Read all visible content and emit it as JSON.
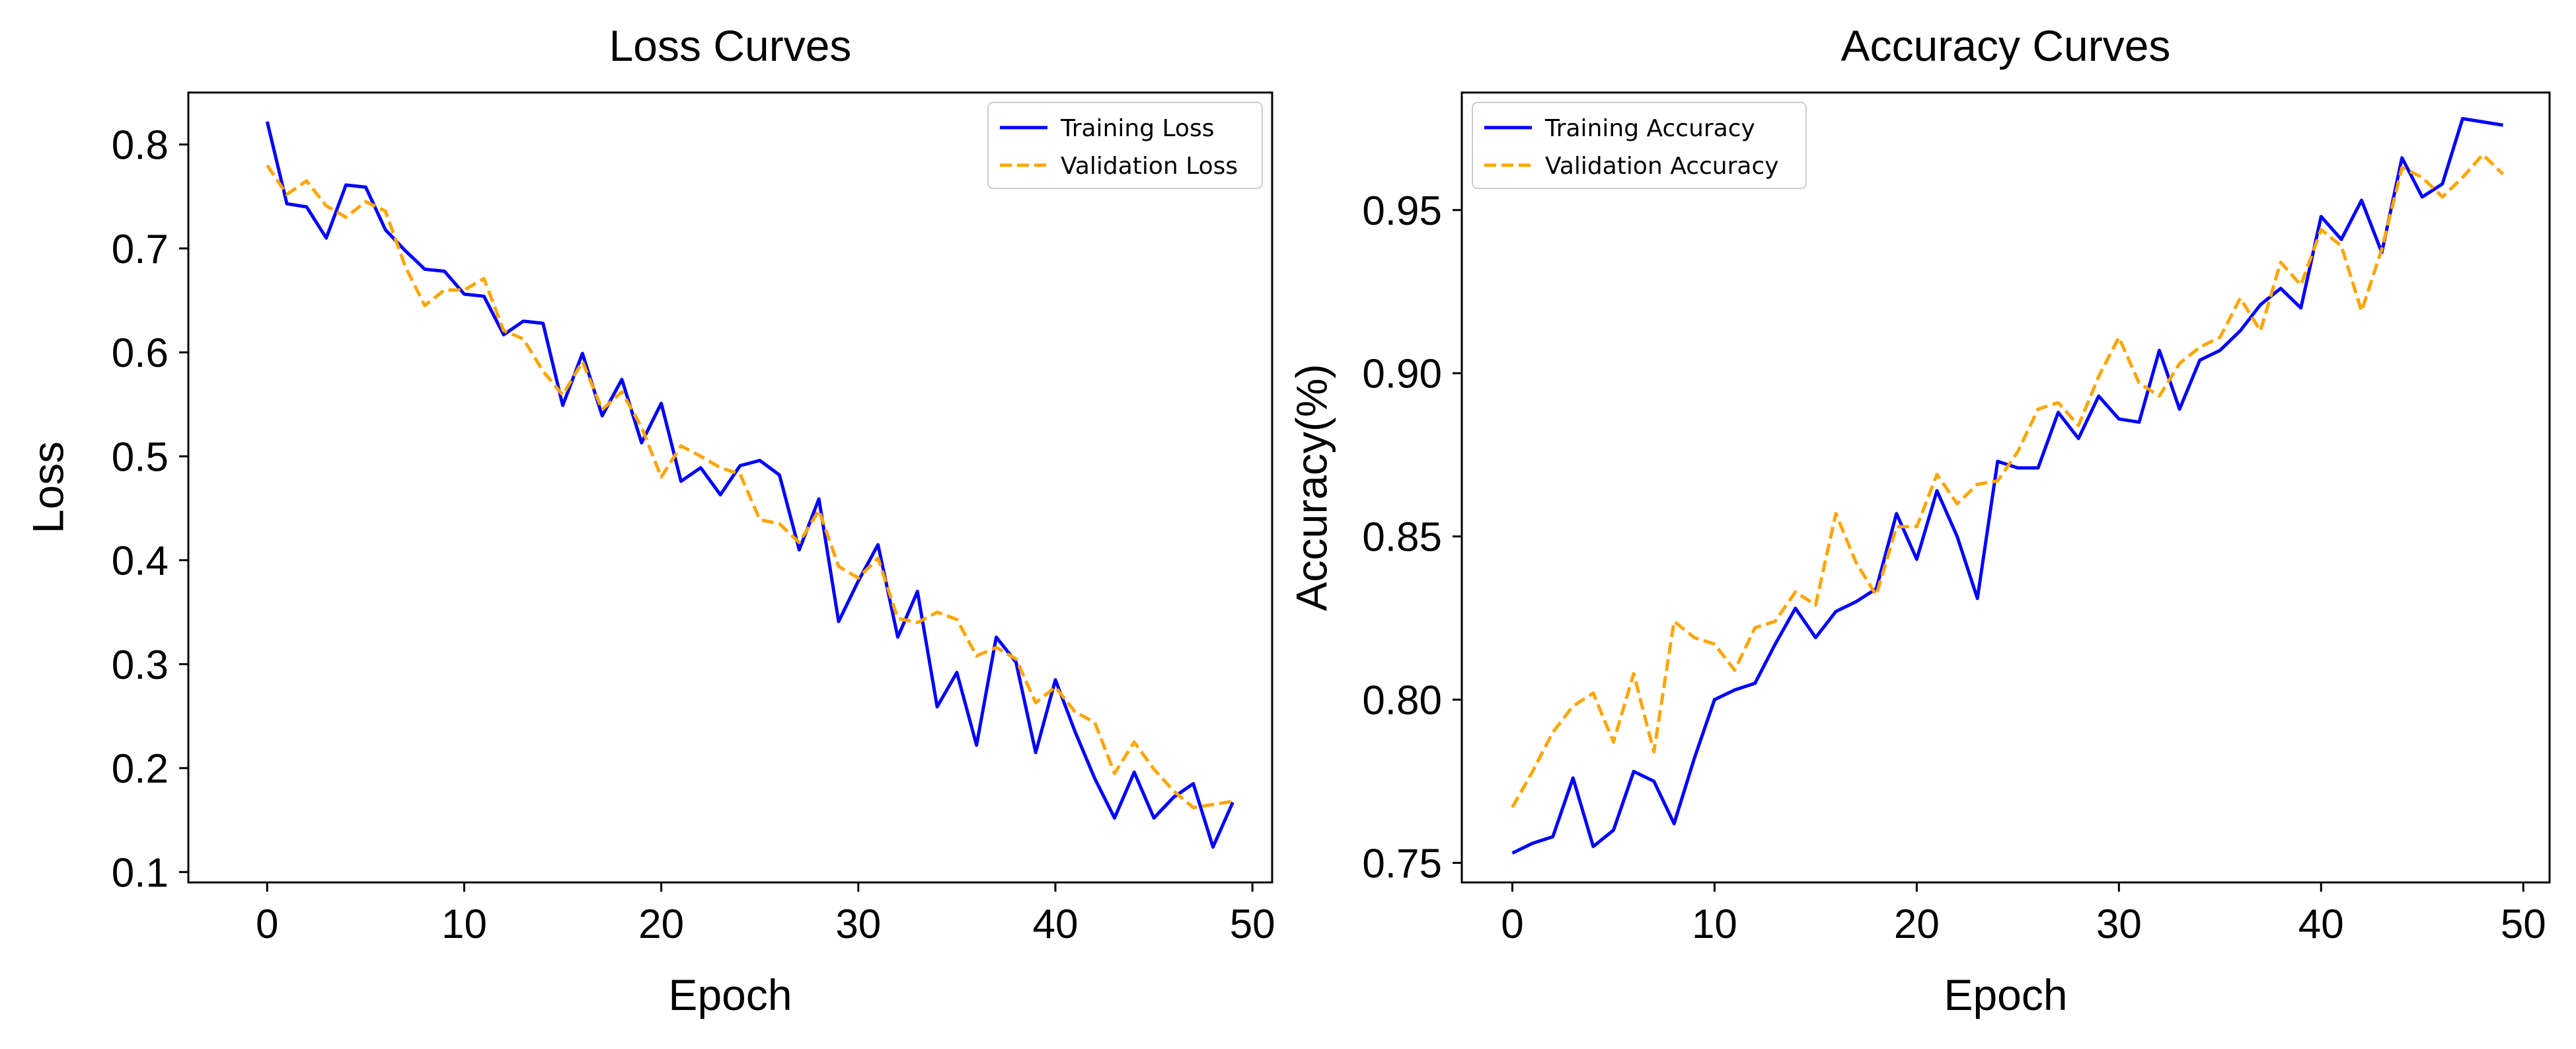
{
  "chart_data": [
    {
      "type": "line",
      "title": "Loss Curves",
      "xlabel": "Epoch",
      "ylabel": "Loss",
      "xlim": [
        -4,
        51
      ],
      "ylim": [
        0.09,
        0.85
      ],
      "xticks": [
        0,
        10,
        20,
        30,
        40,
        50
      ],
      "xtick_labels": [
        "0",
        "10",
        "20",
        "30",
        "40",
        "50"
      ],
      "yticks": [
        0.1,
        0.2,
        0.3,
        0.4,
        0.5,
        0.6,
        0.7,
        0.8
      ],
      "ytick_labels": [
        "0.1",
        "0.2",
        "0.3",
        "0.4",
        "0.5",
        "0.6",
        "0.7",
        "0.8"
      ],
      "grid": false,
      "legend": "top-right",
      "x": [
        0,
        1,
        2,
        3,
        4,
        5,
        6,
        7,
        8,
        9,
        10,
        11,
        12,
        13,
        14,
        15,
        16,
        17,
        18,
        19,
        20,
        21,
        22,
        23,
        24,
        25,
        26,
        27,
        28,
        29,
        30,
        31,
        32,
        33,
        34,
        35,
        36,
        37,
        38,
        39,
        40,
        41,
        42,
        43,
        44,
        45,
        46,
        47,
        48,
        49
      ],
      "series": [
        {
          "name": "Training Loss",
          "color": "#0000ff",
          "style": "solid",
          "values": [
            0.822,
            0.743,
            0.74,
            0.71,
            0.761,
            0.759,
            0.718,
            0.698,
            0.68,
            0.678,
            0.656,
            0.654,
            0.617,
            0.63,
            0.628,
            0.549,
            0.599,
            0.539,
            0.574,
            0.513,
            0.551,
            0.476,
            0.489,
            0.463,
            0.491,
            0.496,
            0.482,
            0.41,
            0.459,
            0.341,
            0.38,
            0.415,
            0.326,
            0.37,
            0.259,
            0.292,
            0.222,
            0.326,
            0.302,
            0.215,
            0.285,
            0.235,
            0.19,
            0.152,
            0.196,
            0.152,
            0.172,
            0.185,
            0.124,
            0.167
          ]
        },
        {
          "name": "Validation Loss",
          "color": "#ffa500",
          "style": "dashed",
          "values": [
            0.78,
            0.752,
            0.765,
            0.741,
            0.73,
            0.745,
            0.736,
            0.683,
            0.645,
            0.66,
            0.66,
            0.671,
            0.621,
            0.613,
            0.582,
            0.559,
            0.591,
            0.545,
            0.562,
            0.528,
            0.48,
            0.51,
            0.5,
            0.489,
            0.483,
            0.439,
            0.435,
            0.417,
            0.448,
            0.394,
            0.383,
            0.402,
            0.344,
            0.34,
            0.35,
            0.343,
            0.308,
            0.316,
            0.305,
            0.263,
            0.278,
            0.254,
            0.244,
            0.195,
            0.225,
            0.199,
            0.178,
            0.162,
            0.165,
            0.168
          ]
        }
      ]
    },
    {
      "type": "line",
      "title": "Accuracy Curves",
      "xlabel": "Epoch",
      "ylabel": "Accuracy(%)",
      "xlim": [
        -2.5,
        51.3
      ],
      "ylim": [
        0.744,
        0.986
      ],
      "xticks": [
        0,
        10,
        20,
        30,
        40,
        50
      ],
      "xtick_labels": [
        "0",
        "10",
        "20",
        "30",
        "40",
        "50"
      ],
      "yticks": [
        0.75,
        0.8,
        0.85,
        0.9,
        0.95
      ],
      "ytick_labels": [
        "0.75",
        "0.80",
        "0.85",
        "0.90",
        "0.95"
      ],
      "grid": false,
      "legend": "top-left",
      "x": [
        0,
        1,
        2,
        3,
        4,
        5,
        6,
        7,
        8,
        9,
        10,
        11,
        12,
        13,
        14,
        15,
        16,
        17,
        18,
        19,
        20,
        21,
        22,
        23,
        24,
        25,
        26,
        27,
        28,
        29,
        30,
        31,
        32,
        33,
        34,
        35,
        36,
        37,
        38,
        39,
        40,
        41,
        42,
        43,
        44,
        45,
        46,
        47,
        48,
        49
      ],
      "series": [
        {
          "name": "Training Accuracy",
          "color": "#0000ff",
          "style": "solid",
          "values": [
            0.753,
            0.756,
            0.758,
            0.776,
            0.755,
            0.76,
            0.778,
            0.775,
            0.762,
            0.782,
            0.8,
            0.803,
            0.805,
            0.817,
            0.828,
            0.819,
            0.827,
            0.83,
            0.834,
            0.857,
            0.843,
            0.864,
            0.85,
            0.831,
            0.873,
            0.871,
            0.871,
            0.888,
            0.88,
            0.893,
            0.886,
            0.885,
            0.907,
            0.889,
            0.904,
            0.907,
            0.913,
            0.921,
            0.926,
            0.92,
            0.948,
            0.941,
            0.953,
            0.937,
            0.966,
            0.954,
            0.958,
            0.978,
            0.977,
            0.976
          ]
        },
        {
          "name": "Validation Accuracy",
          "color": "#ffa500",
          "style": "dashed",
          "values": [
            0.767,
            0.778,
            0.79,
            0.798,
            0.802,
            0.787,
            0.808,
            0.784,
            0.824,
            0.819,
            0.817,
            0.809,
            0.822,
            0.824,
            0.833,
            0.829,
            0.857,
            0.842,
            0.832,
            0.853,
            0.853,
            0.869,
            0.86,
            0.866,
            0.867,
            0.876,
            0.889,
            0.891,
            0.884,
            0.899,
            0.911,
            0.897,
            0.893,
            0.903,
            0.908,
            0.911,
            0.923,
            0.913,
            0.934,
            0.927,
            0.944,
            0.939,
            0.919,
            0.938,
            0.963,
            0.96,
            0.954,
            0.96,
            0.967,
            0.961
          ]
        }
      ]
    }
  ]
}
